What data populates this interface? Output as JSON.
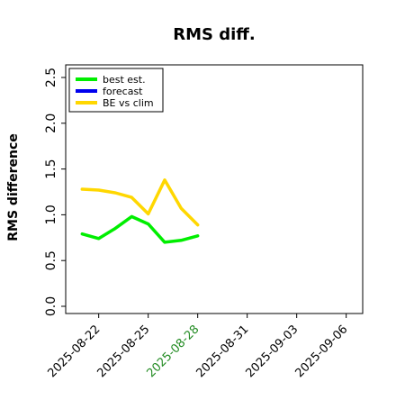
{
  "chart_data": {
    "type": "line",
    "title": "RMS diff.",
    "ylabel": "RMS difference",
    "xlabel": "",
    "ylim": [
      0,
      2.5
    ],
    "yticks": [
      0.0,
      0.5,
      1.0,
      1.5,
      2.0,
      2.5
    ],
    "ytick_labels": [
      "0.0",
      "0.5",
      "1.0",
      "1.5",
      "2.0",
      "2.5"
    ],
    "xlim": [
      "2025-08-20",
      "2025-09-07"
    ],
    "xticks": [
      "2025-08-22",
      "2025-08-25",
      "2025-08-28",
      "2025-08-31",
      "2025-09-03",
      "2025-09-06"
    ],
    "highlight_tick": "2025-08-28",
    "grid": false,
    "legend_position": "top-left",
    "series": [
      {
        "name": "best est.",
        "color": "#00ee00",
        "x": [
          "2025-08-21",
          "2025-08-22",
          "2025-08-23",
          "2025-08-24",
          "2025-08-25",
          "2025-08-26",
          "2025-08-27",
          "2025-08-28"
        ],
        "values": [
          0.79,
          0.74,
          0.85,
          0.98,
          0.9,
          0.7,
          0.72,
          0.77
        ]
      },
      {
        "name": "forecast",
        "color": "#0000ee",
        "x": [],
        "values": []
      },
      {
        "name": "BE vs clim",
        "color": "#ffd700",
        "x": [
          "2025-08-21",
          "2025-08-22",
          "2025-08-23",
          "2025-08-24",
          "2025-08-25",
          "2025-08-26",
          "2025-08-27",
          "2025-08-28"
        ],
        "values": [
          1.28,
          1.27,
          1.24,
          1.19,
          1.01,
          1.38,
          1.07,
          0.89
        ]
      }
    ],
    "colors": {
      "axis": "#000000",
      "highlight_tick": "#228b22"
    }
  }
}
